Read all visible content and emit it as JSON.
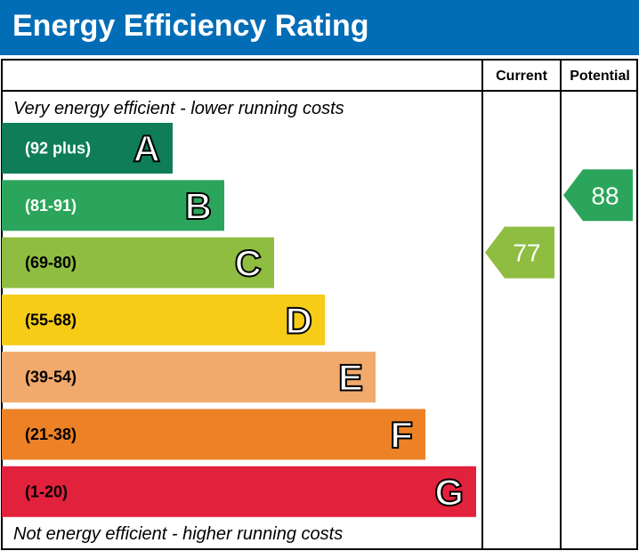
{
  "title": "Energy Efficiency Rating",
  "headers": {
    "current": "Current",
    "potential": "Potential"
  },
  "top_note": "Very energy efficient - lower running costs",
  "bottom_note": "Not energy efficient - higher running costs",
  "chart_data": {
    "type": "bar",
    "bands": [
      {
        "letter": "A",
        "range": "(92 plus)",
        "color": "#0f7d58"
      },
      {
        "letter": "B",
        "range": "(81-91)",
        "color": "#2ba55b"
      },
      {
        "letter": "C",
        "range": "(69-80)",
        "color": "#8fbd41"
      },
      {
        "letter": "D",
        "range": "(55-68)",
        "color": "#f6cc17"
      },
      {
        "letter": "E",
        "range": "(39-54)",
        "color": "#f2aa6c"
      },
      {
        "letter": "F",
        "range": "(21-38)",
        "color": "#ec8126"
      },
      {
        "letter": "G",
        "range": "(1-20)",
        "color": "#e2213c"
      }
    ],
    "current": {
      "value": "77",
      "band": "C"
    },
    "potential": {
      "value": "88",
      "band": "B"
    }
  }
}
